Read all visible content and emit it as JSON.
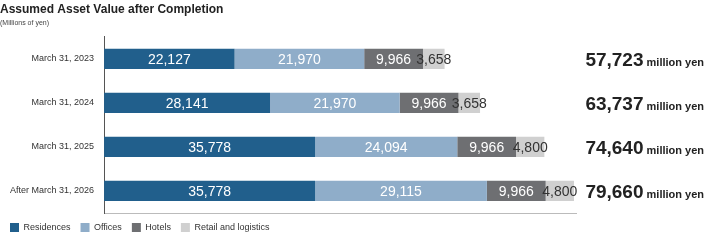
{
  "chart_data": {
    "type": "bar",
    "title": "Assumed Asset Value after Completion",
    "subtitle": "(Millions of yen)",
    "orientation": "horizontal",
    "stacked": true,
    "data_labels": true,
    "grid": false,
    "legend": "bottom-left",
    "tick_labels": "y",
    "xlim": [
      0,
      80000
    ],
    "categories": [
      "March 31, 2023",
      "March 31, 2024",
      "March 31, 2025",
      "After March 31, 2026"
    ],
    "series": [
      {
        "name": "Residences",
        "color": "#215f8c",
        "values": [
          22127,
          28141,
          35778,
          35778
        ],
        "value_labels": [
          "22,127",
          "28,141",
          "35,778",
          "35,778"
        ]
      },
      {
        "name": "Offices",
        "color": "#8fadc9",
        "values": [
          21970,
          21970,
          24094,
          29115
        ],
        "value_labels": [
          "21,970",
          "21,970",
          "24,094",
          "29,115"
        ]
      },
      {
        "name": "Hotels",
        "color": "#6e6f72",
        "values": [
          9966,
          9966,
          9966,
          9966
        ],
        "value_labels": [
          "9,966",
          "9,966",
          "9,966",
          "9,966"
        ]
      },
      {
        "name": "Retail and logistics",
        "color": "#d0d0d0",
        "values": [
          3658,
          3658,
          4800,
          4800
        ],
        "value_labels": [
          "3,658",
          "3,658",
          "4,800",
          "4,800"
        ]
      }
    ],
    "totals": [
      57723,
      63737,
      74640,
      79660
    ],
    "total_labels": [
      "57,723",
      "63,737",
      "74,640",
      "79,660"
    ],
    "total_unit": "million yen"
  }
}
